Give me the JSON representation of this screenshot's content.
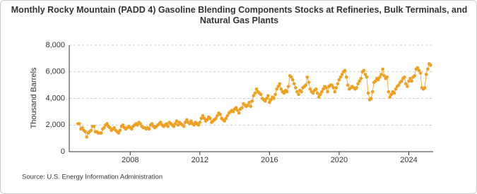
{
  "chart_data": {
    "type": "line",
    "title": "Monthly Rocky Mountain (PADD 4) Gasoline Blending Components Stocks at Refineries, Bulk Terminals, and Natural Gas Plants",
    "y_label": "Thousand Barrels",
    "source": "Source: U.S. Energy Information Administration",
    "x": [
      2005,
      2005.083,
      2005.167,
      2005.25,
      2005.333,
      2005.417,
      2005.5,
      2005.583,
      2005.667,
      2005.75,
      2005.833,
      2005.917,
      2006,
      2006.083,
      2006.167,
      2006.25,
      2006.333,
      2006.417,
      2006.5,
      2006.583,
      2006.667,
      2006.75,
      2006.833,
      2006.917,
      2007,
      2007.083,
      2007.167,
      2007.25,
      2007.333,
      2007.417,
      2007.5,
      2007.583,
      2007.667,
      2007.75,
      2007.833,
      2007.917,
      2008,
      2008.083,
      2008.167,
      2008.25,
      2008.333,
      2008.417,
      2008.5,
      2008.583,
      2008.667,
      2008.75,
      2008.833,
      2008.917,
      2009,
      2009.083,
      2009.167,
      2009.25,
      2009.333,
      2009.417,
      2009.5,
      2009.583,
      2009.667,
      2009.75,
      2009.833,
      2009.917,
      2010,
      2010.083,
      2010.167,
      2010.25,
      2010.333,
      2010.417,
      2010.5,
      2010.583,
      2010.667,
      2010.75,
      2010.833,
      2010.917,
      2011,
      2011.083,
      2011.167,
      2011.25,
      2011.333,
      2011.417,
      2011.5,
      2011.583,
      2011.667,
      2011.75,
      2011.833,
      2011.917,
      2012,
      2012.083,
      2012.167,
      2012.25,
      2012.333,
      2012.417,
      2012.5,
      2012.583,
      2012.667,
      2012.75,
      2012.833,
      2012.917,
      2013,
      2013.083,
      2013.167,
      2013.25,
      2013.333,
      2013.417,
      2013.5,
      2013.583,
      2013.667,
      2013.75,
      2013.833,
      2013.917,
      2014,
      2014.083,
      2014.167,
      2014.25,
      2014.333,
      2014.417,
      2014.5,
      2014.583,
      2014.667,
      2014.75,
      2014.833,
      2014.917,
      2015,
      2015.083,
      2015.167,
      2015.25,
      2015.333,
      2015.417,
      2015.5,
      2015.583,
      2015.667,
      2015.75,
      2015.833,
      2015.917,
      2016,
      2016.083,
      2016.167,
      2016.25,
      2016.333,
      2016.417,
      2016.5,
      2016.583,
      2016.667,
      2016.75,
      2016.833,
      2016.917,
      2017,
      2017.083,
      2017.167,
      2017.25,
      2017.333,
      2017.417,
      2017.5,
      2017.583,
      2017.667,
      2017.75,
      2017.833,
      2017.917,
      2018,
      2018.083,
      2018.167,
      2018.25,
      2018.333,
      2018.417,
      2018.5,
      2018.583,
      2018.667,
      2018.75,
      2018.833,
      2018.917,
      2019,
      2019.083,
      2019.167,
      2019.25,
      2019.333,
      2019.417,
      2019.5,
      2019.583,
      2019.667,
      2019.75,
      2019.833,
      2019.917,
      2020,
      2020.083,
      2020.167,
      2020.25,
      2020.333,
      2020.417,
      2020.5,
      2020.583,
      2020.667,
      2020.75,
      2020.833,
      2020.917,
      2021,
      2021.083,
      2021.167,
      2021.25,
      2021.333,
      2021.417,
      2021.5,
      2021.583,
      2021.667,
      2021.75,
      2021.833,
      2021.917,
      2022,
      2022.083,
      2022.167,
      2022.25,
      2022.333,
      2022.417,
      2022.5,
      2022.583,
      2022.667,
      2022.75,
      2022.833,
      2022.917,
      2023,
      2023.083,
      2023.167,
      2023.25,
      2023.333,
      2023.417,
      2023.5,
      2023.583,
      2023.667,
      2023.75,
      2023.833,
      2023.917,
      2024,
      2024.083,
      2024.167,
      2024.25,
      2024.333,
      2024.417,
      2024.5,
      2024.583,
      2024.667,
      2024.75,
      2024.833,
      2024.917,
      2025,
      2025.083,
      2025.167,
      2025.25
    ],
    "series": [
      {
        "color": "#f0a01e",
        "values": [
          2100,
          2100,
          1700,
          1800,
          1600,
          1500,
          1100,
          1400,
          1500,
          1600,
          1900,
          1900,
          1500,
          1500,
          1400,
          1400,
          1400,
          1700,
          1800,
          2000,
          2100,
          1900,
          1800,
          1600,
          1700,
          1800,
          1600,
          1500,
          1400,
          1600,
          1900,
          2000,
          1800,
          1700,
          1800,
          1900,
          1800,
          1700,
          1900,
          2000,
          2100,
          2000,
          2200,
          2100,
          1900,
          1800,
          1800,
          1700,
          1800,
          1700,
          2000,
          2100,
          1900,
          1800,
          1900,
          2000,
          2100,
          2200,
          2000,
          1900,
          2000,
          2100,
          1900,
          2200,
          2100,
          2000,
          1900,
          2100,
          2300,
          2000,
          2200,
          2100,
          2000,
          1900,
          2200,
          2400,
          2200,
          2100,
          2300,
          2100,
          2000,
          2200,
          2100,
          2000,
          2200,
          2500,
          2700,
          2500,
          2300,
          2400,
          2600,
          2500,
          2200,
          2300,
          2400,
          2500,
          2700,
          2900,
          2800,
          2500,
          2400,
          2300,
          2500,
          2700,
          2900,
          3000,
          3100,
          3000,
          3200,
          3300,
          3100,
          2900,
          3200,
          3300,
          3600,
          3500,
          3400,
          3500,
          3700,
          3400,
          3800,
          4200,
          4400,
          4700,
          4500,
          4400,
          4300,
          4000,
          3900,
          3800,
          4000,
          4200,
          3700,
          3900,
          4100,
          4000,
          4300,
          4700,
          4900,
          5100,
          4700,
          4500,
          4400,
          4600,
          4500,
          4900,
          5700,
          5600,
          5400,
          5100,
          4800,
          4500,
          4300,
          4600,
          4500,
          4800,
          4900,
          5000,
          5600,
          5200,
          4700,
          4500,
          4400,
          4600,
          4700,
          4400,
          4100,
          4300,
          4500,
          4700,
          4900,
          4800,
          4500,
          4900,
          5000,
          5000,
          4800,
          4500,
          4800,
          5100,
          5400,
          5600,
          5800,
          6000,
          6100,
          5600,
          5000,
          4700,
          4800,
          4900,
          4800,
          4700,
          4800,
          5100,
          5300,
          5500,
          6000,
          6100,
          5800,
          5600,
          4400,
          3900,
          4000,
          4500,
          5200,
          5300,
          5500,
          5400,
          5600,
          5800,
          6200,
          5700,
          5500,
          5600,
          4500,
          4100,
          4300,
          4500,
          4400,
          4700,
          4900,
          5000,
          5200,
          5300,
          5500,
          5600,
          5100,
          4900,
          5300,
          5500,
          5300,
          5600,
          5700,
          6200,
          6300,
          6100,
          5900,
          4800,
          4700,
          4800,
          5800,
          6200,
          6600,
          6500
        ]
      }
    ],
    "xlim": [
      2004.5,
      2025.4
    ],
    "xticks": [
      2008,
      2012,
      2016,
      2020,
      2024
    ],
    "ylim": [
      0,
      8000
    ],
    "yticks": [
      0,
      {
        "value": 2000,
        "label": "2,000"
      },
      {
        "value": 4000,
        "label": "4,000"
      },
      {
        "value": 6000,
        "label": "6,000"
      },
      {
        "value": 8000,
        "label": "8,000"
      }
    ],
    "grid": true
  }
}
